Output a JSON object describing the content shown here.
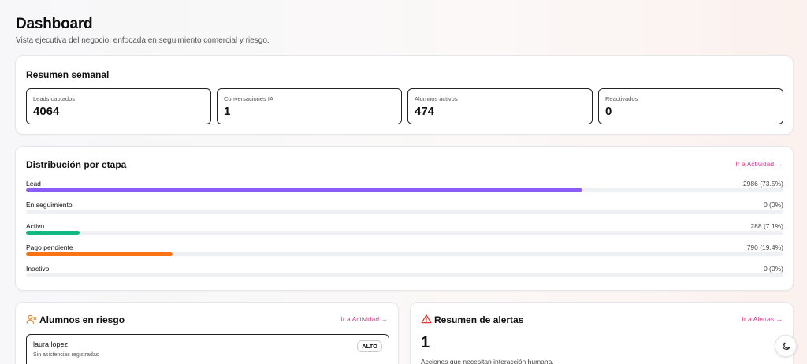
{
  "header": {
    "title": "Dashboard",
    "subtitle": "Vista ejecutiva del negocio, enfocada en seguimiento comercial y riesgo."
  },
  "summary": {
    "title": "Resumen semanal",
    "metrics": [
      {
        "label": "Leads captados",
        "value": "4064"
      },
      {
        "label": "Conversaciones IA",
        "value": "1"
      },
      {
        "label": "Alumnos activos",
        "value": "474"
      },
      {
        "label": "Reactivados",
        "value": "0"
      }
    ]
  },
  "distribution": {
    "title": "Distribución por etapa",
    "link": "Ir a Actividad →",
    "stages": [
      {
        "label": "Lead",
        "value": "2986 (73.5%)",
        "fraction": 0.735,
        "color": "#8b5cf6"
      },
      {
        "label": "En seguimiento",
        "value": "0 (0%)",
        "fraction": 0,
        "color": "#3b82f6"
      },
      {
        "label": "Activo",
        "value": "288 (7.1%)",
        "fraction": 0.071,
        "color": "#10b981"
      },
      {
        "label": "Pago pendiente",
        "value": "790 (19.4%)",
        "fraction": 0.194,
        "color": "#f97316"
      },
      {
        "label": "Inactivo",
        "value": "0 (0%)",
        "fraction": 0,
        "color": "#9ca3af"
      }
    ]
  },
  "risk": {
    "title": "Alumnos en riesgo",
    "link": "Ir a Actividad →",
    "icon": "user-x-icon",
    "student": {
      "name": "laura lopez",
      "note": "Sin asistencias registradas",
      "badge": "ALTO"
    }
  },
  "alerts": {
    "title": "Resumen de alertas",
    "link": "Ir a Alertas →",
    "icon": "alert-triangle-icon",
    "count": "1",
    "note": "Acciones que necesitan interacción humana."
  },
  "theme_toggle": {
    "icon": "moon-icon"
  },
  "colors": {
    "accent_link": "#d93b8a",
    "risk_icon": "#e8862a",
    "alert_icon": "#dc2626"
  }
}
